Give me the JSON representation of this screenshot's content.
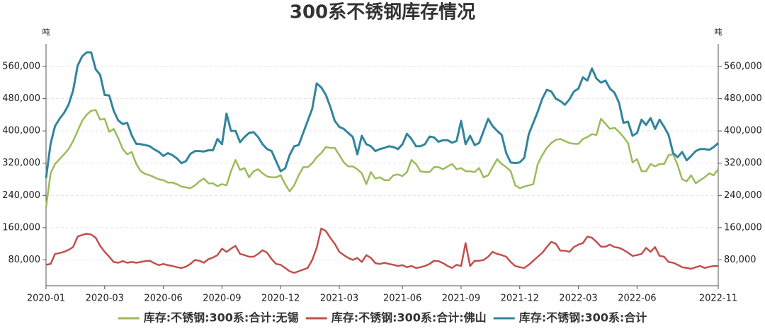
{
  "chart_data": {
    "type": "line",
    "title": "300系不锈钢库存情况",
    "y_label": "吨",
    "y2_label": "吨",
    "categories": [
      "2020-01",
      null,
      null,
      null,
      null,
      null,
      null,
      null,
      null,
      null,
      null,
      null,
      null,
      "2020-03",
      null,
      null,
      null,
      null,
      null,
      null,
      null,
      null,
      null,
      null,
      null,
      null,
      "2020-06",
      null,
      null,
      null,
      null,
      null,
      null,
      null,
      null,
      null,
      null,
      null,
      null,
      "2020-09",
      null,
      null,
      null,
      null,
      null,
      null,
      null,
      null,
      null,
      null,
      null,
      null,
      "2020-12",
      null,
      null,
      null,
      null,
      null,
      null,
      null,
      null,
      null,
      null,
      null,
      null,
      "2021-03",
      null,
      null,
      null,
      null,
      null,
      null,
      null,
      null,
      null,
      null,
      null,
      null,
      null,
      "2021-06",
      null,
      null,
      null,
      null,
      null,
      null,
      null,
      null,
      null,
      null,
      null,
      null,
      "2021-09",
      null,
      null,
      null,
      null,
      null,
      null,
      null,
      null,
      null,
      null,
      null,
      null,
      "2021-12",
      null,
      null,
      null,
      null,
      null,
      null,
      null,
      null,
      null,
      null,
      null,
      null,
      "2022-03",
      null,
      null,
      null,
      null,
      null,
      null,
      null,
      null,
      null,
      null,
      null,
      null,
      "2022-06",
      null,
      null,
      null,
      null,
      null,
      null,
      null,
      null,
      null,
      null,
      null,
      null,
      null,
      null,
      null,
      null,
      null,
      "2022-11"
    ],
    "series": [
      {
        "name": "库存:不锈钢:300系:合计:无锡",
        "color": "#9bbb59",
        "values": [
          210000,
          295000,
          318000,
          330000,
          342000,
          355000,
          375000,
          400000,
          425000,
          440000,
          450000,
          452000,
          428000,
          430000,
          398000,
          405000,
          382000,
          355000,
          342000,
          348000,
          318000,
          300000,
          293000,
          290000,
          285000,
          280000,
          278000,
          272000,
          272000,
          268000,
          262000,
          260000,
          258000,
          265000,
          275000,
          282000,
          270000,
          270000,
          263000,
          268000,
          265000,
          300000,
          328000,
          303000,
          308000,
          285000,
          300000,
          305000,
          295000,
          287000,
          285000,
          285000,
          290000,
          268000,
          250000,
          265000,
          290000,
          310000,
          310000,
          320000,
          335000,
          345000,
          360000,
          358000,
          358000,
          340000,
          322000,
          312000,
          312000,
          305000,
          295000,
          268000,
          298000,
          282000,
          285000,
          278000,
          278000,
          290000,
          292000,
          288000,
          298000,
          328000,
          318000,
          300000,
          298000,
          298000,
          310000,
          310000,
          305000,
          312000,
          318000,
          305000,
          308000,
          300000,
          300000,
          298000,
          308000,
          285000,
          290000,
          310000,
          330000,
          318000,
          310000,
          300000,
          265000,
          258000,
          262000,
          265000,
          268000,
          318000,
          340000,
          358000,
          370000,
          378000,
          380000,
          375000,
          370000,
          368000,
          368000,
          380000,
          385000,
          392000,
          390000,
          430000,
          418000,
          405000,
          408000,
          398000,
          385000,
          370000,
          322000,
          330000,
          300000,
          300000,
          318000,
          312000,
          318000,
          318000,
          340000,
          342000,
          315000,
          280000,
          275000,
          290000,
          270000,
          278000,
          285000,
          295000,
          290000,
          305000
        ]
      },
      {
        "name": "库存:不锈钢:300系:合计:佛山",
        "color": "#c0504d",
        "values": [
          68000,
          70000,
          95000,
          97000,
          100000,
          105000,
          112000,
          138000,
          142000,
          145000,
          143000,
          135000,
          115000,
          100000,
          88000,
          75000,
          73000,
          77000,
          73000,
          75000,
          73000,
          75000,
          77000,
          78000,
          72000,
          67000,
          70000,
          67000,
          65000,
          62000,
          60000,
          63000,
          70000,
          80000,
          78000,
          73000,
          82000,
          86000,
          92000,
          108000,
          100000,
          108000,
          115000,
          95000,
          92000,
          88000,
          88000,
          95000,
          104000,
          98000,
          82000,
          70000,
          68000,
          60000,
          52000,
          48000,
          52000,
          56000,
          60000,
          80000,
          110000,
          158000,
          152000,
          135000,
          120000,
          100000,
          92000,
          85000,
          80000,
          85000,
          75000,
          92000,
          85000,
          72000,
          70000,
          73000,
          70000,
          68000,
          65000,
          67000,
          62000,
          65000,
          60000,
          62000,
          65000,
          70000,
          78000,
          77000,
          72000,
          65000,
          60000,
          68000,
          65000,
          122000,
          65000,
          78000,
          78000,
          80000,
          88000,
          100000,
          95000,
          92000,
          88000,
          75000,
          65000,
          62000,
          60000,
          68000,
          78000,
          88000,
          98000,
          112000,
          125000,
          120000,
          103000,
          103000,
          100000,
          112000,
          118000,
          122000,
          138000,
          135000,
          125000,
          113000,
          113000,
          118000,
          112000,
          110000,
          105000,
          98000,
          90000,
          92000,
          95000,
          110000,
          100000,
          112000,
          90000,
          88000,
          75000,
          73000,
          68000,
          62000,
          60000,
          58000,
          62000,
          65000,
          60000,
          63000,
          65000,
          65000
        ]
      },
      {
        "name": "库存:不锈钢:300系:合计",
        "color": "#31859c",
        "values": [
          283000,
          368000,
          412000,
          430000,
          445000,
          465000,
          500000,
          562000,
          585000,
          595000,
          595000,
          553000,
          539000,
          489000,
          488000,
          450000,
          426000,
          417000,
          420000,
          389000,
          368000,
          367000,
          365000,
          362000,
          354000,
          348000,
          338000,
          345000,
          340000,
          332000,
          320000,
          325000,
          343000,
          350000,
          350000,
          349000,
          352000,
          352000,
          380000,
          367000,
          443000,
          400000,
          400000,
          372000,
          385000,
          395000,
          397000,
          385000,
          367000,
          355000,
          350000,
          325000,
          300000,
          307000,
          340000,
          362000,
          365000,
          395000,
          425000,
          455000,
          518000,
          508000,
          490000,
          460000,
          425000,
          410000,
          405000,
          395000,
          385000,
          342000,
          388000,
          367000,
          362000,
          350000,
          355000,
          358000,
          362000,
          360000,
          355000,
          367000,
          393000,
          380000,
          362000,
          362000,
          367000,
          386000,
          384000,
          373000,
          377000,
          377000,
          371000,
          375000,
          425000,
          367000,
          388000,
          365000,
          370000,
          400000,
          430000,
          412000,
          400000,
          390000,
          345000,
          322000,
          320000,
          322000,
          333000,
          392000,
          420000,
          448000,
          480000,
          502000,
          498000,
          480000,
          474000,
          465000,
          478000,
          498000,
          505000,
          533000,
          525000,
          555000,
          530000,
          520000,
          525000,
          505000,
          495000,
          470000,
          420000,
          423000,
          388000,
          395000,
          428000,
          415000,
          432000,
          405000,
          428000,
          410000,
          390000,
          345000,
          335000,
          348000,
          327000,
          338000,
          350000,
          355000,
          355000,
          353000,
          360000,
          370000
        ]
      }
    ],
    "ylim": [
      16000,
      616000
    ],
    "yticks": [
      {
        "value": 80000,
        "label": "80,000"
      },
      {
        "value": 160000,
        "label": "160,000"
      },
      {
        "value": 240000,
        "label": "240,000"
      },
      {
        "value": 320000,
        "label": "320,000"
      },
      {
        "value": 400000,
        "label": "400,000"
      },
      {
        "value": 480000,
        "label": "480,000"
      },
      {
        "value": 560000,
        "label": "560,000"
      }
    ],
    "y2lim": [
      16000,
      616000
    ],
    "y2ticks": [
      {
        "value": 80000,
        "label": "80,000"
      },
      {
        "value": 160000,
        "label": "160,000"
      },
      {
        "value": 240000,
        "label": "240,000"
      },
      {
        "value": 320000,
        "label": "320,000"
      },
      {
        "value": 400000,
        "label": "400,000"
      },
      {
        "value": 480000,
        "label": "480,000"
      },
      {
        "value": 560000,
        "label": "560,000"
      }
    ],
    "grid": true,
    "legend": "bottom"
  }
}
